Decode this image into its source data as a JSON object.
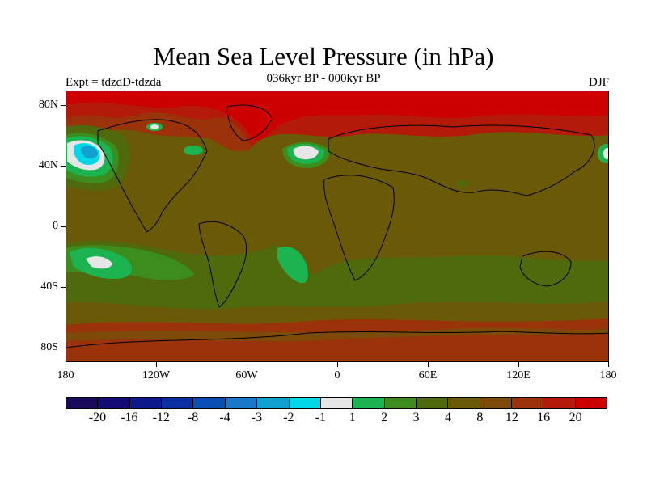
{
  "title": "Mean Sea Level Pressure (in hPa)",
  "subtitle": "036kyr BP - 000kyr BP",
  "left_label": "Expt = tdzdD-tdzda",
  "right_label": "DJF",
  "y_axis_labels": [
    "80N",
    "40N",
    "0",
    "40S",
    "80S"
  ],
  "x_axis_labels": [
    "180",
    "120W",
    "60W",
    "0",
    "60E",
    "120E",
    "180"
  ],
  "colorbar": {
    "colors": [
      "#1a0a5c",
      "#140c75",
      "#0c1a8c",
      "#0a2fa0",
      "#0a50b4",
      "#1a78c8",
      "#10a0d0",
      "#00d8e6",
      "#e6e6e6",
      "#1cb450",
      "#3c8c1e",
      "#4e6a0c",
      "#6a5a08",
      "#7e4a0a",
      "#9a320a",
      "#b41a0a",
      "#cc0000"
    ],
    "labels": [
      "-20",
      "-16",
      "-12",
      "-8",
      "-4",
      "-3",
      "-2",
      "-1",
      "1",
      "2",
      "3",
      "4",
      "8",
      "12",
      "16",
      "20"
    ]
  },
  "map": {
    "lon_range": [
      -180,
      180
    ],
    "lat_range": [
      -90,
      90
    ],
    "base_color": "#6a5a08"
  }
}
